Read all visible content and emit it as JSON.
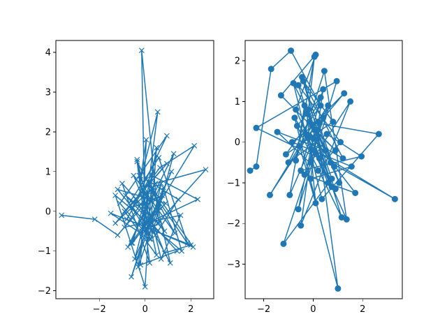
{
  "chart_data": [
    {
      "type": "line",
      "marker": "x",
      "color": "#1f77b4",
      "title": "",
      "xlabel": "",
      "ylabel": "",
      "xlim": [
        -3.9,
        3.0
      ],
      "ylim": [
        -2.2,
        4.3
      ],
      "xticks": [
        -2,
        0,
        2
      ],
      "xtick_labels": [
        "−2",
        "0",
        "2"
      ],
      "yticks": [
        -2,
        -1,
        0,
        1,
        2,
        3,
        4
      ],
      "ytick_labels": [
        "−2",
        "−1",
        "0",
        "1",
        "2",
        "3",
        "4"
      ],
      "grid": false,
      "legend": "none",
      "x": [
        -3.65,
        -2.2,
        -1.2,
        0.15,
        -0.6,
        0.6,
        -0.35,
        0.2,
        -1.0,
        0.85,
        -0.25,
        0.5,
        -0.9,
        0.95,
        -1.3,
        0.35,
        -0.45,
        1.15,
        0.0,
        -0.15,
        0.6,
        -0.85,
        1.4,
        -0.2,
        0.05,
        -0.2,
        0.55,
        -0.3,
        0.75,
        -0.55,
        0.95,
        -1.1,
        0.25,
        1.25,
        -0.75,
        0.4,
        1.1,
        -0.4,
        0.65,
        2.15,
        0.2,
        -0.6,
        0.8,
        1.6,
        -1.3,
        0.0,
        0.3,
        2.3,
        0.1,
        -0.35,
        0.7,
        1.55,
        -0.9,
        0.45,
        2.65,
        0.15,
        -0.7,
        0.6,
        1.85,
        0.3,
        1.3,
        -0.5,
        0.85,
        2.0,
        -1.5,
        0.2,
        0.5,
        -0.1,
        0.9,
        -1.2,
        0.45,
        1.45,
        0.05,
        2.1,
        -0.8,
        0.35,
        -0.55,
        0.6,
        -0.15,
        0.7,
        0.3
      ],
      "y": [
        -0.1,
        -0.2,
        -0.6,
        0.3,
        -0.8,
        0.2,
        1.25,
        -1.3,
        0.7,
        -0.5,
        0.9,
        -1.1,
        0.0,
        1.2,
        -0.3,
        0.6,
        -1.2,
        1.0,
        -0.5,
        4.05,
        -0.3,
        0.4,
        -1.0,
        -1.35,
        1.8,
        0.8,
        2.5,
        -1.4,
        0.4,
        0.1,
        1.9,
        0.2,
        -0.7,
        1.45,
        -0.9,
        0.5,
        -1.3,
        0.3,
        1.1,
        1.65,
        -0.2,
        -1.65,
        0.6,
        -1.0,
        0.4,
        -1.9,
        0.9,
        0.3,
        -0.3,
        1.3,
        -1.2,
        -0.1,
        -0.4,
        0.7,
        1.05,
        -0.55,
        0.2,
        1.35,
        -0.8,
        0.5,
        -0.55,
        0.9,
        -1.05,
        -0.85,
        -0.05,
        -0.7,
        1.6,
        -0.4,
        0.2,
        0.55,
        -0.6,
        0.3,
        0.8,
        -0.9,
        -0.2,
        1.0,
        -0.8,
        0.1,
        -0.5,
        0.7,
        -0.3
      ]
    },
    {
      "type": "line",
      "marker": "o",
      "color": "#1f77b4",
      "title": "",
      "xlabel": "",
      "ylabel": "",
      "xlim": [
        -2.75,
        3.6
      ],
      "ylim": [
        -3.85,
        2.5
      ],
      "xticks": [
        -2,
        0,
        2
      ],
      "xtick_labels": [
        "−2",
        "0",
        "2"
      ],
      "yticks": [
        -3,
        -2,
        -1,
        0,
        1,
        2
      ],
      "ytick_labels": [
        "−3",
        "−2",
        "−1",
        "0",
        "1",
        "2"
      ],
      "grid": false,
      "legend": "none",
      "x": [
        -2.55,
        -2.3,
        -1.7,
        -0.9,
        0.3,
        -1.1,
        0.8,
        -0.4,
        1.2,
        -0.2,
        0.6,
        -0.7,
        0.1,
        -1.3,
        0.9,
        0.05,
        -0.5,
        1.5,
        -0.1,
        0.4,
        -0.95,
        0.05,
        -0.3,
        0.75,
        -0.6,
        1.1,
        0.2,
        -1.45,
        0.5,
        -0.15,
        2.65,
        0.35,
        -0.8,
        0.85,
        -0.25,
        0.1,
        -0.55,
        1.25,
        -0.05,
        -1.75,
        0.6,
        -0.35,
        1.7,
        0.0,
        -0.6,
        0.95,
        -2.3,
        0.25,
        -0.75,
        1.0,
        0.15,
        -0.45,
        0.7,
        3.3,
        0.05,
        -1.2,
        0.75,
        -0.2,
        1.15,
        -0.65,
        0.3,
        -1.0,
        0.55,
        1.95,
        -0.5,
        0.4,
        -0.1,
        1.55,
        -0.85,
        0.2,
        1.05,
        -0.35,
        -0.7,
        0.45,
        1.35,
        -0.15,
        0.9
      ],
      "y": [
        -0.7,
        -0.6,
        1.8,
        2.25,
        0.9,
        -0.3,
        0.5,
        1.5,
        -0.4,
        0.1,
        -1.0,
        0.8,
        2.15,
        1.15,
        -0.2,
        0.3,
        -2.05,
        1.0,
        -0.5,
        0.6,
        -1.3,
        2.1,
        0.2,
        -1.1,
        1.4,
        0.0,
        -0.7,
        0.25,
        -0.2,
        0.5,
        0.2,
        -1.4,
        1.45,
        -0.6,
        0.7,
        -1.5,
        -0.1,
        1.2,
        0.4,
        -1.3,
        0.9,
        -0.8,
        -1.25,
        0.1,
        -1.65,
        1.5,
        0.35,
        -0.4,
        0.6,
        -3.6,
        0.3,
        1.6,
        -0.5,
        -1.4,
        -0.2,
        -2.5,
        -0.9,
        0.8,
        -1.85,
        0.4,
        1.1,
        -0.5,
        0.2,
        -0.35,
        -0.7,
        1.3,
        -0.9,
        -0.6,
        0.0,
        0.5,
        -1.0,
        0.9,
        -0.45,
        1.75,
        -1.9,
        0.15,
        -1.15
      ]
    }
  ]
}
